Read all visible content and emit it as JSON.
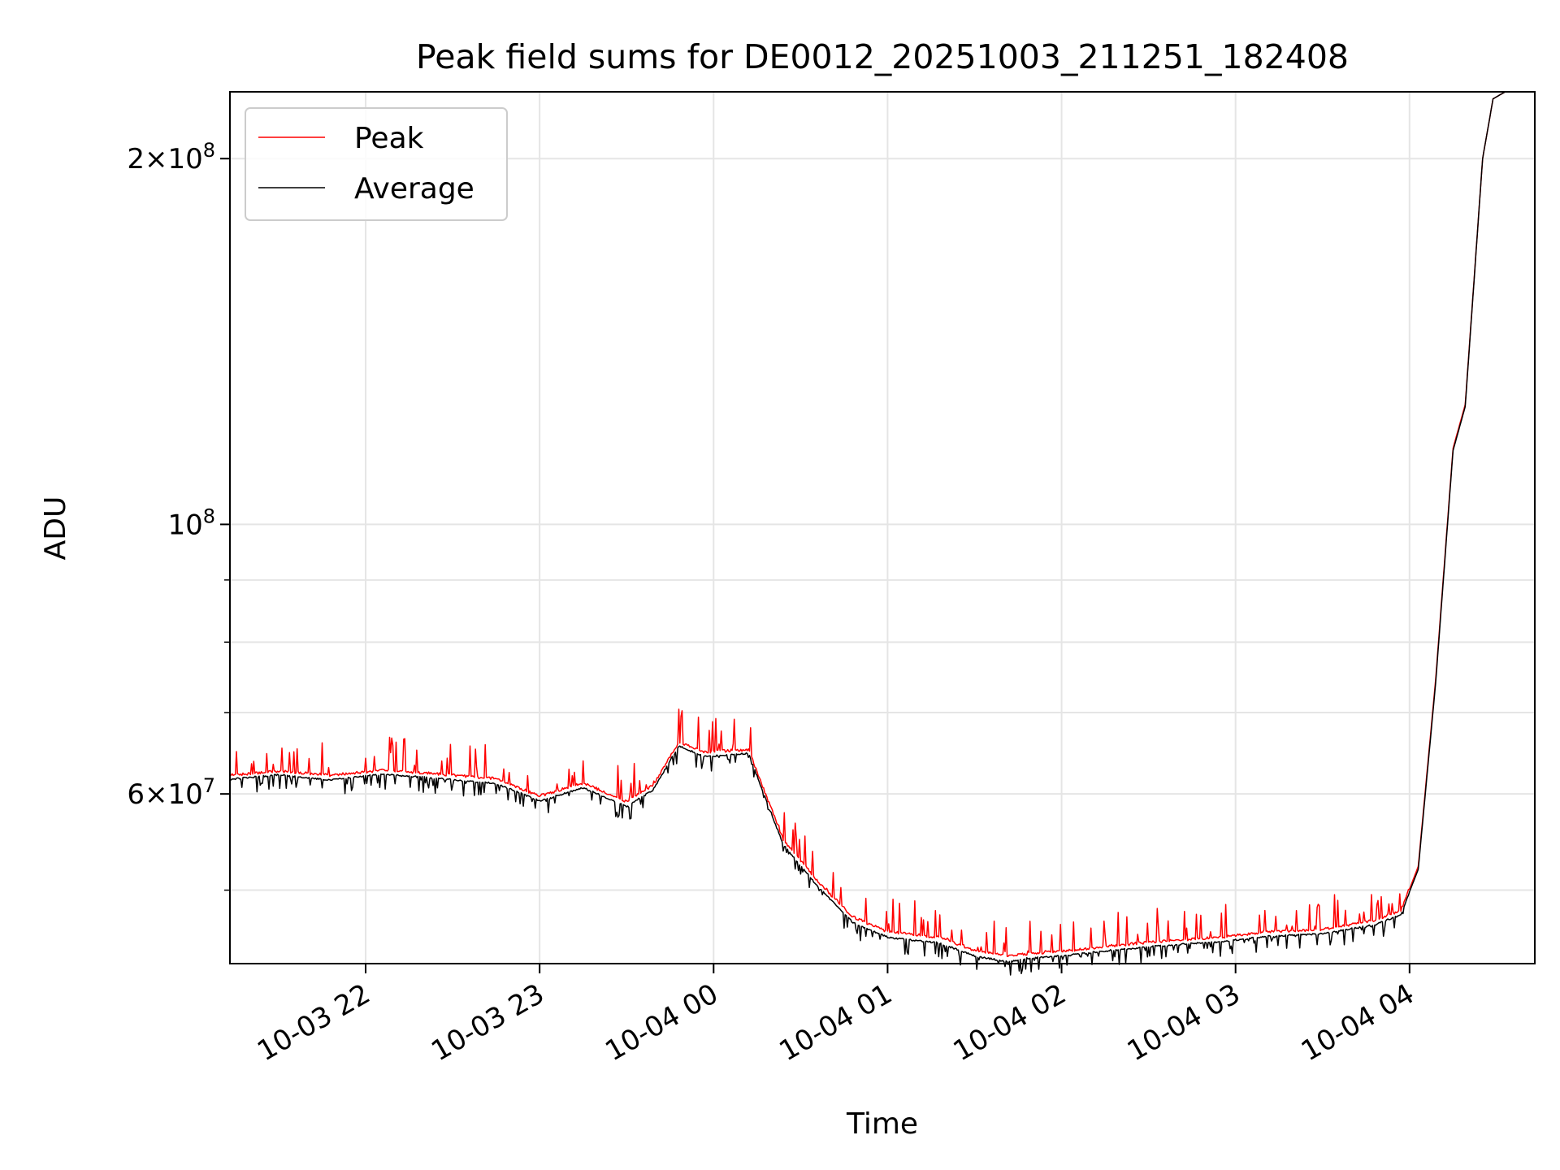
{
  "chart_data": {
    "type": "line",
    "title": "Peak field sums for DE0012_20251003_211251_182408",
    "xlabel": "Time",
    "ylabel": "ADU",
    "yscale": "log",
    "ylim": [
      43500000,
      227000000
    ],
    "xlim_hours": [
      21.22,
      28.72
    ],
    "x_unit": "hours since 2025-10-03 00:00",
    "grid": true,
    "legend_location": "upper left",
    "legend": [
      "Peak",
      "Average"
    ],
    "x_ticks": [
      {
        "value": 22,
        "label": "10-03 22"
      },
      {
        "value": 23,
        "label": "10-03 23"
      },
      {
        "value": 24,
        "label": "10-04 00"
      },
      {
        "value": 25,
        "label": "10-04 01"
      },
      {
        "value": 26,
        "label": "10-04 02"
      },
      {
        "value": 27,
        "label": "10-04 03"
      },
      {
        "value": 28,
        "label": "10-04 04"
      }
    ],
    "y_ticks": [
      {
        "value": 60000000,
        "mantissa": "6",
        "exponent": "7"
      },
      {
        "value": 100000000,
        "mantissa": "",
        "exponent": "8"
      },
      {
        "value": 200000000,
        "mantissa": "2",
        "exponent": "8"
      }
    ],
    "y_minor_ticks": [
      50000000,
      70000000,
      80000000,
      90000000
    ],
    "series": [
      {
        "name": "Average",
        "color": "#000000",
        "x": [
          21.22,
          21.5,
          21.8,
          22.1,
          22.4,
          22.75,
          23.0,
          23.25,
          23.5,
          23.65,
          23.8,
          23.95,
          24.2,
          24.4,
          24.6,
          24.8,
          25.0,
          25.3,
          25.5,
          25.7,
          25.8,
          26.0,
          26.3,
          26.6,
          26.9,
          27.2,
          27.5,
          27.8,
          27.95,
          28.05,
          28.15,
          28.25,
          28.32,
          28.42,
          28.48,
          28.55,
          28.6,
          28.72
        ],
        "y": [
          61800000,
          62300000,
          61700000,
          62400000,
          61900000,
          61300000,
          59300000,
          60800000,
          58700000,
          60500000,
          65800000,
          64500000,
          64900000,
          54600000,
          50400000,
          47100000,
          45800000,
          45300000,
          44200000,
          43700000,
          44000000,
          44200000,
          44700000,
          45100000,
          45400000,
          45900000,
          46100000,
          46900000,
          47800000,
          52000000,
          74000000,
          115000000,
          125000000,
          200000000,
          224000000,
          227000000,
          227000000,
          227000000
        ]
      },
      {
        "name": "Peak",
        "color": "#ff0000",
        "x": [
          21.22,
          21.5,
          21.8,
          22.1,
          22.4,
          22.75,
          23.0,
          23.25,
          23.5,
          23.65,
          23.8,
          23.95,
          24.2,
          24.4,
          24.6,
          24.8,
          25.0,
          25.3,
          25.5,
          25.7,
          25.8,
          26.0,
          26.3,
          26.6,
          26.9,
          27.2,
          27.5,
          27.8,
          27.95,
          28.05,
          28.15,
          28.25,
          28.32,
          28.42,
          28.48,
          28.55,
          28.6,
          28.72
        ],
        "y": [
          62000000,
          62500000,
          62000000,
          62600000,
          62200000,
          61600000,
          59600000,
          61100000,
          59000000,
          60800000,
          66000000,
          64800000,
          65100000,
          54900000,
          50700000,
          47400000,
          46100000,
          45600000,
          44500000,
          44000000,
          44200000,
          44400000,
          44900000,
          45300000,
          45600000,
          46100000,
          46300000,
          47100000,
          48000000,
          52300000,
          74500000,
          115500000,
          125500000,
          200000000,
          224000000,
          227000000,
          227000000,
          227000000
        ]
      }
    ]
  }
}
